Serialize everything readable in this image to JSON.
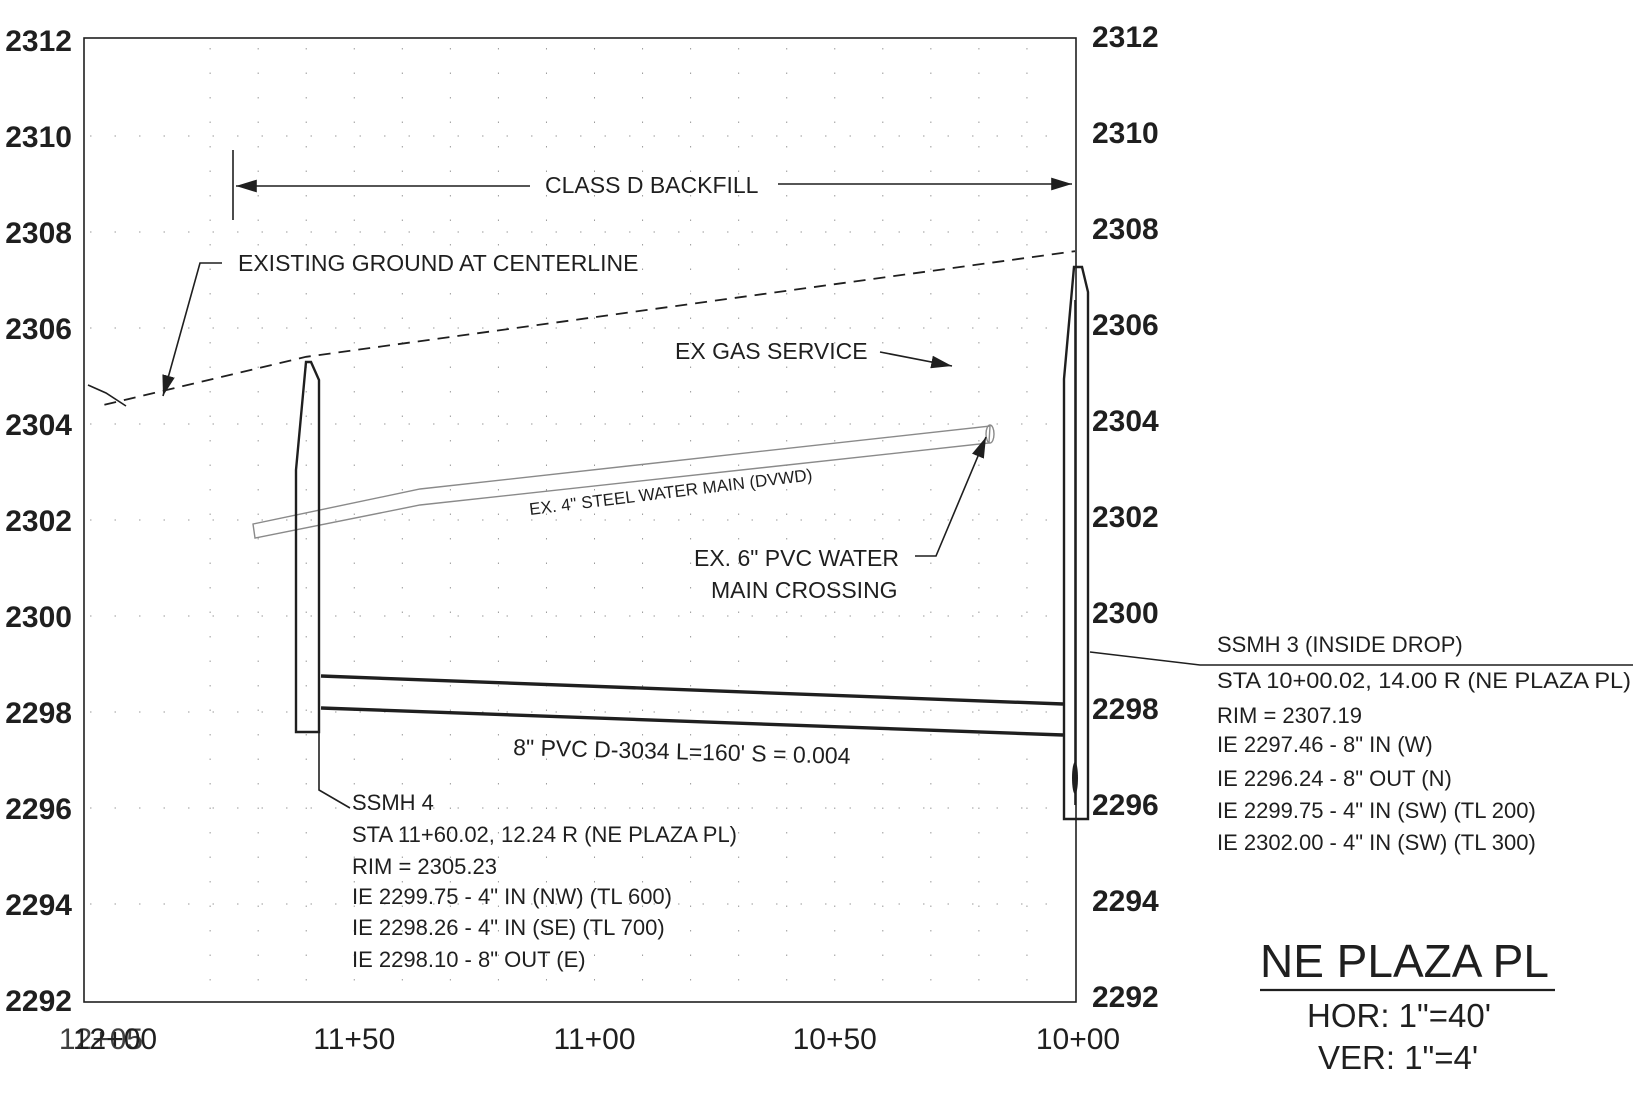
{
  "chart_data": {
    "type": "profile",
    "y_axis": {
      "ticks": [
        "2312",
        "2310",
        "2308",
        "2306",
        "2304",
        "2302",
        "2300",
        "2298",
        "2296",
        "2294",
        "2292"
      ]
    },
    "x_axis": {
      "ticks": [
        "12+00",
        "11+50",
        "11+00",
        "10+50",
        "10+00"
      ],
      "overlap_label": "12+05"
    },
    "existing_ground": [
      {
        "station": 1205,
        "elev": 2304.9
      },
      {
        "station": 1202,
        "elev": 2304.4
      },
      {
        "station": 1160,
        "elev": 2305.4
      },
      {
        "station": 1000,
        "elev": 2307.6
      }
    ],
    "pipe": {
      "label": "8\" PVC D-3034 L=160' S = 0.004",
      "from_station": 1160.02,
      "to_station": 1000.02,
      "ie_upstream": 2298.1,
      "ie_downstream": 2297.46,
      "diameter_ft": 0.67
    },
    "manholes": [
      {
        "station": 1160.02,
        "rim": 2305.23,
        "bottom": 2297.6
      },
      {
        "station": 1000.02,
        "rim": 2307.19,
        "bottom": 2295.8
      }
    ]
  },
  "labels": {
    "backfill": "CLASS D BACKFILL",
    "existing_ground": "EXISTING GROUND AT CENTERLINE",
    "gas_service": "EX GAS SERVICE",
    "steel_main": "EX. 4\" STEEL WATER MAIN (DVWD)",
    "pvc_crossing_1": "EX. 6\" PVC WATER",
    "pvc_crossing_2": "MAIN CROSSING",
    "pipe": "8\" PVC D-3034 L=160' S = 0.004"
  },
  "ssmh4": {
    "lines": [
      "SSMH 4",
      "STA 11+60.02, 12.24 R (NE PLAZA PL)",
      "RIM = 2305.23",
      "IE 2299.75 - 4\" IN (NW) (TL 600)",
      "IE 2298.26 - 4\" IN (SE) (TL 700)",
      "IE 2298.10 - 8\" OUT (E)"
    ]
  },
  "ssmh3": {
    "lines": [
      "SSMH 3 (INSIDE DROP)",
      "STA 10+00.02, 14.00 R (NE PLAZA PL)",
      "RIM = 2307.19",
      "IE 2297.46 - 8\" IN (W)",
      "IE 2296.24 - 8\" OUT (N)",
      "IE 2299.75 - 4\" IN (SW) (TL 200)",
      "IE 2302.00 - 4\" IN (SW) (TL 300)"
    ]
  },
  "title_block": {
    "street": "NE PLAZA PL",
    "hor": "HOR: 1\"=40'",
    "ver": "VER:  1\"=4'"
  }
}
